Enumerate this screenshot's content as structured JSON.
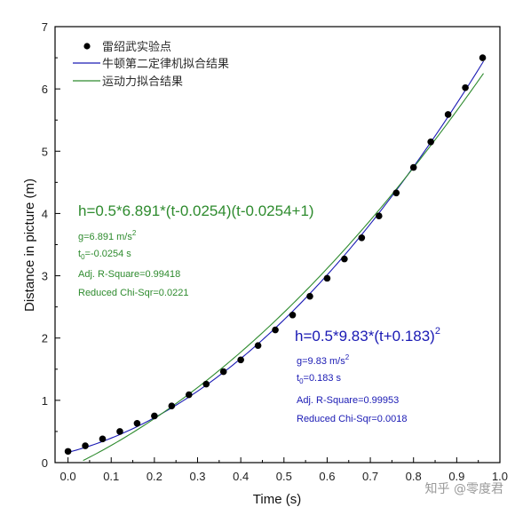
{
  "chart_data": {
    "type": "scatter",
    "xlabel": "Time (s)",
    "ylabel": "Distance in picture (m)",
    "xlim": [
      -0.03,
      1.0
    ],
    "ylim": [
      0,
      7
    ],
    "xticks": [
      "0.0",
      "0.1",
      "0.2",
      "0.3",
      "0.4",
      "0.5",
      "0.6",
      "0.7",
      "0.8",
      "0.9",
      "1.0"
    ],
    "yticks": [
      "0",
      "1",
      "2",
      "3",
      "4",
      "5",
      "6",
      "7"
    ],
    "legend_position": "top-left",
    "grid": false,
    "series": [
      {
        "name": "雷绍武实验点",
        "kind": "scatter",
        "color": "#000000",
        "x": [
          0.0,
          0.04,
          0.08,
          0.12,
          0.16,
          0.2,
          0.24,
          0.28,
          0.32,
          0.36,
          0.4,
          0.44,
          0.48,
          0.52,
          0.56,
          0.6,
          0.64,
          0.68,
          0.72,
          0.76,
          0.8,
          0.84,
          0.88,
          0.92,
          0.96
        ],
        "y": [
          0.18,
          0.27,
          0.38,
          0.5,
          0.63,
          0.75,
          0.91,
          1.09,
          1.26,
          1.46,
          1.65,
          1.88,
          2.13,
          2.37,
          2.67,
          2.96,
          3.27,
          3.61,
          3.96,
          4.33,
          4.74,
          5.15,
          5.59,
          6.02,
          6.5
        ]
      },
      {
        "name": "牛顿第二定律机拟合结果",
        "kind": "line",
        "color": "#1a1ab4",
        "equation": {
          "g": 9.83,
          "t0": 0.183
        }
      },
      {
        "name": "运动力拟合结果",
        "kind": "line",
        "color": "#2e8b2e",
        "equation": {
          "g": 6.891,
          "t0": -0.0254
        }
      }
    ],
    "annotations": {
      "green": {
        "color": "#2e8b2e",
        "equation": "h=0.5*6.891*(t-0.0254)(t-0.0254+1)",
        "g_main": "g=6.891 m/s",
        "g_sup": "2",
        "t0_main": "t",
        "t0_sub": "0",
        "t0_rest": "=-0.0254 s",
        "r2": "Adj. R-Square=0.99418",
        "chi": "Reduced Chi-Sqr=0.0221"
      },
      "blue": {
        "color": "#1a1ab4",
        "equation_main": "h=0.5*9.83*(t+0.183)",
        "equation_sup": "2",
        "g_main": "g=9.83 m/s",
        "g_sup": "2",
        "t0_main": "t",
        "t0_sub": "0",
        "t0_rest": "=0.183 s",
        "r2": "Adj. R-Square=0.99953",
        "chi": "Reduced Chi-Sqr=0.0018"
      }
    }
  },
  "watermark": "知乎 @零度君"
}
